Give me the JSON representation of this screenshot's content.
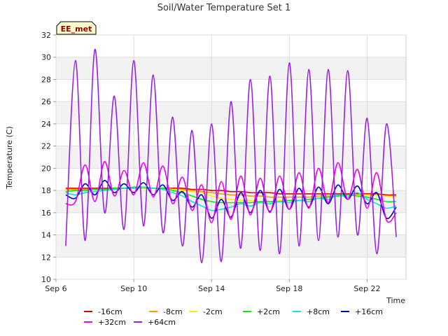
{
  "chart_data": {
    "type": "line",
    "title": "Soil/Water Temperature Set 1",
    "xlabel": "Time",
    "ylabel": "Temperature (C)",
    "badge": "EE_met",
    "xlim": [
      "2023-09-06",
      "2023-09-24"
    ],
    "x_ticks": [
      {
        "date": "2023-09-06",
        "label": "Sep 6"
      },
      {
        "date": "2023-09-10",
        "label": "Sep 10"
      },
      {
        "date": "2023-09-14",
        "label": "Sep 14"
      },
      {
        "date": "2023-09-18",
        "label": "Sep 18"
      },
      {
        "date": "2023-09-22",
        "label": "Sep 22"
      }
    ],
    "ylim": [
      10,
      32
    ],
    "y_ticks": [
      10,
      12,
      14,
      16,
      18,
      20,
      22,
      24,
      26,
      28,
      30,
      32
    ],
    "grid": true,
    "legend_position": "bottom",
    "x": [
      "2023-09-06 12:00",
      "2023-09-07 00:00",
      "2023-09-07 12:00",
      "2023-09-08 00:00",
      "2023-09-08 12:00",
      "2023-09-09 00:00",
      "2023-09-09 12:00",
      "2023-09-10 00:00",
      "2023-09-10 12:00",
      "2023-09-11 00:00",
      "2023-09-11 12:00",
      "2023-09-12 00:00",
      "2023-09-12 12:00",
      "2023-09-13 00:00",
      "2023-09-13 12:00",
      "2023-09-14 00:00",
      "2023-09-14 12:00",
      "2023-09-15 00:00",
      "2023-09-15 12:00",
      "2023-09-16 00:00",
      "2023-09-16 12:00",
      "2023-09-17 00:00",
      "2023-09-17 12:00",
      "2023-09-18 00:00",
      "2023-09-18 12:00",
      "2023-09-19 00:00",
      "2023-09-19 12:00",
      "2023-09-20 00:00",
      "2023-09-20 12:00",
      "2023-09-21 00:00",
      "2023-09-21 12:00",
      "2023-09-22 00:00",
      "2023-09-22 12:00",
      "2023-09-23 00:00",
      "2023-09-23 12:00"
    ],
    "series": [
      {
        "name": "-16cm",
        "color": "#dd0000",
        "values": [
          18.2,
          18.2,
          18.2,
          18.2,
          18.2,
          18.2,
          18.2,
          18.2,
          18.2,
          18.2,
          18.2,
          18.2,
          18.2,
          18.1,
          18.1,
          18.0,
          18.0,
          17.9,
          17.9,
          17.8,
          17.8,
          17.8,
          17.7,
          17.7,
          17.7,
          17.7,
          17.7,
          17.7,
          17.7,
          17.7,
          17.7,
          17.7,
          17.7,
          17.6,
          17.6
        ]
      },
      {
        "name": "-8cm",
        "color": "#ff9900",
        "values": [
          18.1,
          18.1,
          18.1,
          18.1,
          18.1,
          18.1,
          18.2,
          18.2,
          18.2,
          18.2,
          18.2,
          18.1,
          18.1,
          18.0,
          17.9,
          17.8,
          17.7,
          17.6,
          17.6,
          17.5,
          17.5,
          17.4,
          17.4,
          17.4,
          17.4,
          17.4,
          17.5,
          17.5,
          17.5,
          17.6,
          17.6,
          17.6,
          17.6,
          17.5,
          17.5
        ]
      },
      {
        "name": "-2cm",
        "color": "#ffee00",
        "values": [
          18.0,
          18.0,
          18.0,
          18.1,
          18.1,
          18.1,
          18.2,
          18.2,
          18.2,
          18.2,
          18.2,
          18.1,
          18.0,
          17.9,
          17.8,
          17.5,
          17.3,
          17.2,
          17.1,
          17.1,
          17.0,
          17.0,
          17.1,
          17.1,
          17.1,
          17.2,
          17.3,
          17.4,
          17.5,
          17.6,
          17.6,
          17.6,
          17.6,
          17.5,
          17.4
        ]
      },
      {
        "name": "+2cm",
        "color": "#00ee00",
        "values": [
          17.9,
          18.0,
          18.0,
          18.1,
          18.1,
          18.2,
          18.2,
          18.3,
          18.3,
          18.2,
          18.2,
          18.0,
          17.8,
          17.5,
          17.2,
          17.0,
          16.9,
          16.9,
          16.9,
          16.9,
          17.0,
          17.0,
          17.0,
          17.1,
          17.1,
          17.2,
          17.3,
          17.4,
          17.5,
          17.6,
          17.5,
          17.4,
          17.2,
          17.0,
          17.0
        ]
      },
      {
        "name": "+8cm",
        "color": "#00e5e5",
        "values": [
          17.8,
          17.6,
          17.8,
          17.9,
          18.0,
          18.1,
          18.2,
          18.2,
          18.3,
          18.2,
          18.1,
          17.8,
          17.5,
          17.0,
          16.6,
          16.2,
          16.3,
          16.5,
          16.8,
          16.6,
          16.9,
          16.8,
          17.0,
          16.9,
          17.1,
          17.0,
          17.3,
          17.2,
          17.6,
          17.4,
          17.8,
          17.2,
          16.8,
          16.4,
          16.6
        ]
      },
      {
        "name": "+16cm",
        "color": "#0000cc",
        "values": [
          17.6,
          17.3,
          18.6,
          17.6,
          18.9,
          17.8,
          18.6,
          17.8,
          18.7,
          17.6,
          18.5,
          17.1,
          17.9,
          16.5,
          17.6,
          15.5,
          17.2,
          15.6,
          17.8,
          16.0,
          18.0,
          16.1,
          18.1,
          16.3,
          18.2,
          16.5,
          18.3,
          16.8,
          18.5,
          17.2,
          18.4,
          16.8,
          17.8,
          15.5,
          16.5
        ]
      },
      {
        "name": "+32cm",
        "color": "#ee00ee",
        "values": [
          16.8,
          17.0,
          20.3,
          17.0,
          20.6,
          17.5,
          19.8,
          17.6,
          20.5,
          17.4,
          20.2,
          16.8,
          19.2,
          16.2,
          18.5,
          15.1,
          18.8,
          15.4,
          19.3,
          15.8,
          19.1,
          16.0,
          19.3,
          16.3,
          19.6,
          16.4,
          20.0,
          16.9,
          20.5,
          17.2,
          19.9,
          16.4,
          19.6,
          15.3,
          16.0
        ]
      },
      {
        "name": "+64cm",
        "color": "#9922dd",
        "values": [
          13.0,
          29.7,
          13.5,
          30.7,
          16.0,
          26.5,
          14.5,
          29.7,
          14.8,
          28.4,
          14.2,
          24.6,
          13.0,
          23.4,
          11.5,
          24.0,
          11.6,
          26.0,
          12.8,
          28.0,
          12.6,
          28.3,
          12.3,
          29.5,
          13.0,
          28.9,
          13.5,
          28.9,
          13.8,
          28.8,
          14.0,
          24.5,
          12.3,
          24.0,
          13.8
        ]
      }
    ]
  }
}
